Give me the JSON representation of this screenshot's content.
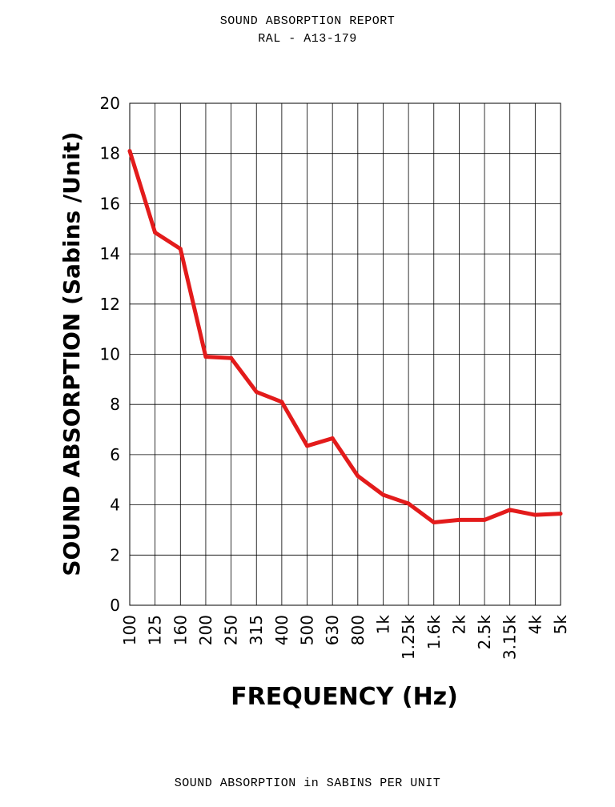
{
  "header": {
    "title": "SOUND ABSORPTION REPORT",
    "subtitle": "RAL - A13-179"
  },
  "footer": {
    "caption": "SOUND ABSORPTION in SABINS PER UNIT"
  },
  "chart_data": {
    "type": "line",
    "title": "SOUND ABSORPTION REPORT",
    "subtitle": "RAL - A13-179",
    "xlabel": "FREQUENCY (Hz)",
    "ylabel": "SOUND ABSORPTION (Sabins /Unit)",
    "categories": [
      "100",
      "125",
      "160",
      "200",
      "250",
      "315",
      "400",
      "500",
      "630",
      "800",
      "1k",
      "1.25k",
      "1.6k",
      "2k",
      "2.5k",
      "3.15k",
      "4k",
      "5k"
    ],
    "series": [
      {
        "values": [
          18.1,
          14.85,
          14.2,
          9.9,
          9.85,
          8.5,
          8.1,
          6.35,
          6.65,
          5.15,
          4.4,
          4.05,
          3.3,
          3.4,
          3.4,
          3.8,
          3.6,
          3.65
        ],
        "color": "#e31b1b"
      }
    ],
    "ylim": [
      0,
      20
    ],
    "yticks": [
      0,
      2,
      4,
      6,
      8,
      10,
      12,
      14,
      16,
      18,
      20
    ],
    "grid": true,
    "legend": "none"
  }
}
